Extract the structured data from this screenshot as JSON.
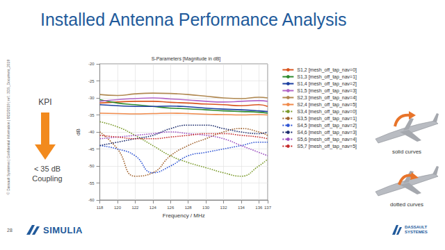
{
  "slide": {
    "title": "Installed Antenna Performance Analysis",
    "copyright": "© Dassault Systèmes | Confidential Information | 8/22/2019 | ref.: 3DS_Document_2019",
    "kpi": "KPI",
    "kpi_note": [
      "< 35 dB",
      "Coupling"
    ],
    "page_number": "28",
    "brand": "SIMULIA",
    "company": [
      "DASSAULT",
      "SYSTEMES"
    ],
    "solid_label": "solid curves",
    "dotted_label": "dotted curves"
  },
  "chart_data": {
    "type": "line",
    "title": "S-Parameters [Magnitude in dB]",
    "x_label": "Frequency / MHz",
    "y_label": "dB",
    "x": [
      118,
      120,
      122,
      124,
      126,
      128,
      130,
      132,
      134,
      136,
      137
    ],
    "xlim": [
      118,
      137
    ],
    "xticks": [
      118,
      120,
      122,
      124,
      126,
      128,
      130,
      132,
      134,
      136,
      137
    ],
    "ylim": [
      -60,
      -20
    ],
    "yticks": [
      -60,
      -55,
      -50,
      -45,
      -40,
      -35,
      -30,
      -25,
      -20
    ],
    "grid": true,
    "legend": "right",
    "series": [
      {
        "name": "S1,2 [mesh_off_tap_nav=0]",
        "color": "#d9541e",
        "line_style": "solid",
        "values": [
          -31.5,
          -31.2,
          -31,
          -31,
          -31.3,
          -31.5,
          -31.8,
          -32,
          -32.3,
          -32,
          -32.5
        ]
      },
      {
        "name": "S1,3 [mesh_off_tap_nav=1]",
        "color": "#2e8b2e",
        "line_style": "solid",
        "values": [
          -30.5,
          -31.5,
          -32,
          -32.5,
          -33,
          -33.2,
          -33.5,
          -33.8,
          -34,
          -34.2,
          -34.5
        ]
      },
      {
        "name": "S1,4 [mesh_off_tap_nav=2]",
        "color": "#1c3fa0",
        "line_style": "solid",
        "values": [
          -32,
          -32.3,
          -32.5,
          -32.5,
          -32.4,
          -32.6,
          -33,
          -33.3,
          -33.5,
          -33.8,
          -34
        ]
      },
      {
        "name": "S1,5 [mesh_off_tap_nav=3]",
        "color": "#b366c7",
        "line_style": "solid",
        "values": [
          -31,
          -30.5,
          -30.2,
          -30,
          -30.3,
          -30.6,
          -31,
          -31.2,
          -31,
          -30.8,
          -31
        ]
      },
      {
        "name": "S2,3 [mesh_off_tap_nav=4]",
        "color": "#b08850",
        "line_style": "solid",
        "values": [
          -29,
          -29.3,
          -28.8,
          -28.6,
          -28.7,
          -29,
          -29.5,
          -30,
          -30.2,
          -29.8,
          -30
        ]
      },
      {
        "name": "S2,4 [mesh_off_tap_nav=5]",
        "color": "#f08a4b",
        "line_style": "solid",
        "values": [
          -34.5,
          -34.6,
          -34.7,
          -34.6,
          -34.5,
          -34.6,
          -34.8,
          -34.9,
          -35,
          -34.9,
          -35
        ]
      },
      {
        "name": "S3,4 [mesh_off_tap_nav=0]",
        "color": "#7a9a2a",
        "line_style": "dotted",
        "values": [
          -37,
          -38.5,
          -41,
          -44,
          -47,
          -49,
          -50.5,
          -52,
          -53,
          -50,
          -48
        ]
      },
      {
        "name": "S3,5 [mesh_off_tap_nav=1]",
        "color": "#a0622d",
        "line_style": "dotted",
        "values": [
          -40,
          -45,
          -53,
          -52,
          -47,
          -44,
          -42,
          -40,
          -39,
          -40,
          -41
        ]
      },
      {
        "name": "S4,5 [mesh_off_tap_nav=2]",
        "color": "#2f55d4",
        "line_style": "dotted",
        "values": [
          -44,
          -45,
          -47,
          -52,
          -50,
          -47,
          -46,
          -45,
          -44,
          -43,
          -43
        ]
      },
      {
        "name": "S4,6 [mesh_off_tap_nav=3]",
        "color": "#1a2a6c",
        "line_style": "dotted",
        "values": [
          -44,
          -43,
          -42,
          -41,
          -39,
          -38,
          -38,
          -39,
          -40,
          -40.5,
          -40
        ]
      },
      {
        "name": "S5,6 [mesh_off_tap_nav=4]",
        "color": "#9b4fc0",
        "line_style": "dotted",
        "values": [
          -42,
          -41.5,
          -41,
          -40.5,
          -40,
          -40.5,
          -41,
          -42,
          -44,
          -46,
          -47
        ]
      },
      {
        "name": "S5,7 [mesh_off_tap_nav=5]",
        "color": "#c42b2b",
        "line_style": "dotted",
        "values": [
          -41,
          -41.5,
          -42,
          -42,
          -41.5,
          -41,
          -40.5,
          -40.5,
          -41,
          -41.5,
          -42
        ]
      }
    ]
  }
}
